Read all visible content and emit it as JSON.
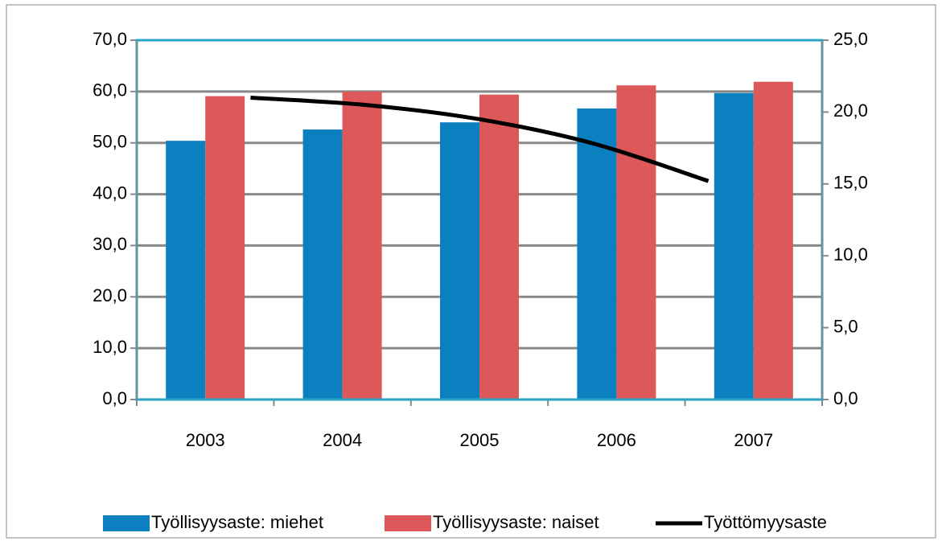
{
  "chart_data": {
    "type": "bar",
    "categories": [
      "2003",
      "2004",
      "2005",
      "2006",
      "2007"
    ],
    "series": [
      {
        "name": "Työllisyysaste: miehet",
        "color": "#0a80c0",
        "type": "bar",
        "values": [
          50.4,
          52.6,
          54.0,
          56.7,
          59.7
        ]
      },
      {
        "name": "Työllisyysaste: naiset",
        "color": "#dd5858",
        "type": "bar",
        "values": [
          59.1,
          60.0,
          59.4,
          61.2,
          61.9
        ]
      },
      {
        "name": "Työttömyysaste",
        "color": "#000000",
        "type": "line",
        "axis": "y2",
        "values": [
          21.0,
          20.5,
          19.5,
          17.8,
          15.2
        ]
      }
    ],
    "ylim": [
      0,
      70
    ],
    "yticks": [
      {
        "value": 0,
        "label": "0,0"
      },
      {
        "value": 10,
        "label": "10,0"
      },
      {
        "value": 20,
        "label": "20,0"
      },
      {
        "value": 30,
        "label": "30,0"
      },
      {
        "value": 40,
        "label": "40,0"
      },
      {
        "value": 50,
        "label": "50,0"
      },
      {
        "value": 60,
        "label": "60,0"
      },
      {
        "value": 70,
        "label": "70,0"
      }
    ],
    "y2lim": [
      0,
      25
    ],
    "y2ticks": [
      {
        "value": 0,
        "label": "0,0"
      },
      {
        "value": 5,
        "label": "5,0"
      },
      {
        "value": 10,
        "label": "10,0"
      },
      {
        "value": 15,
        "label": "15,0"
      },
      {
        "value": 20,
        "label": "20,0"
      },
      {
        "value": 25,
        "label": "25,0"
      }
    ],
    "grid": true,
    "legend": "bottom"
  }
}
